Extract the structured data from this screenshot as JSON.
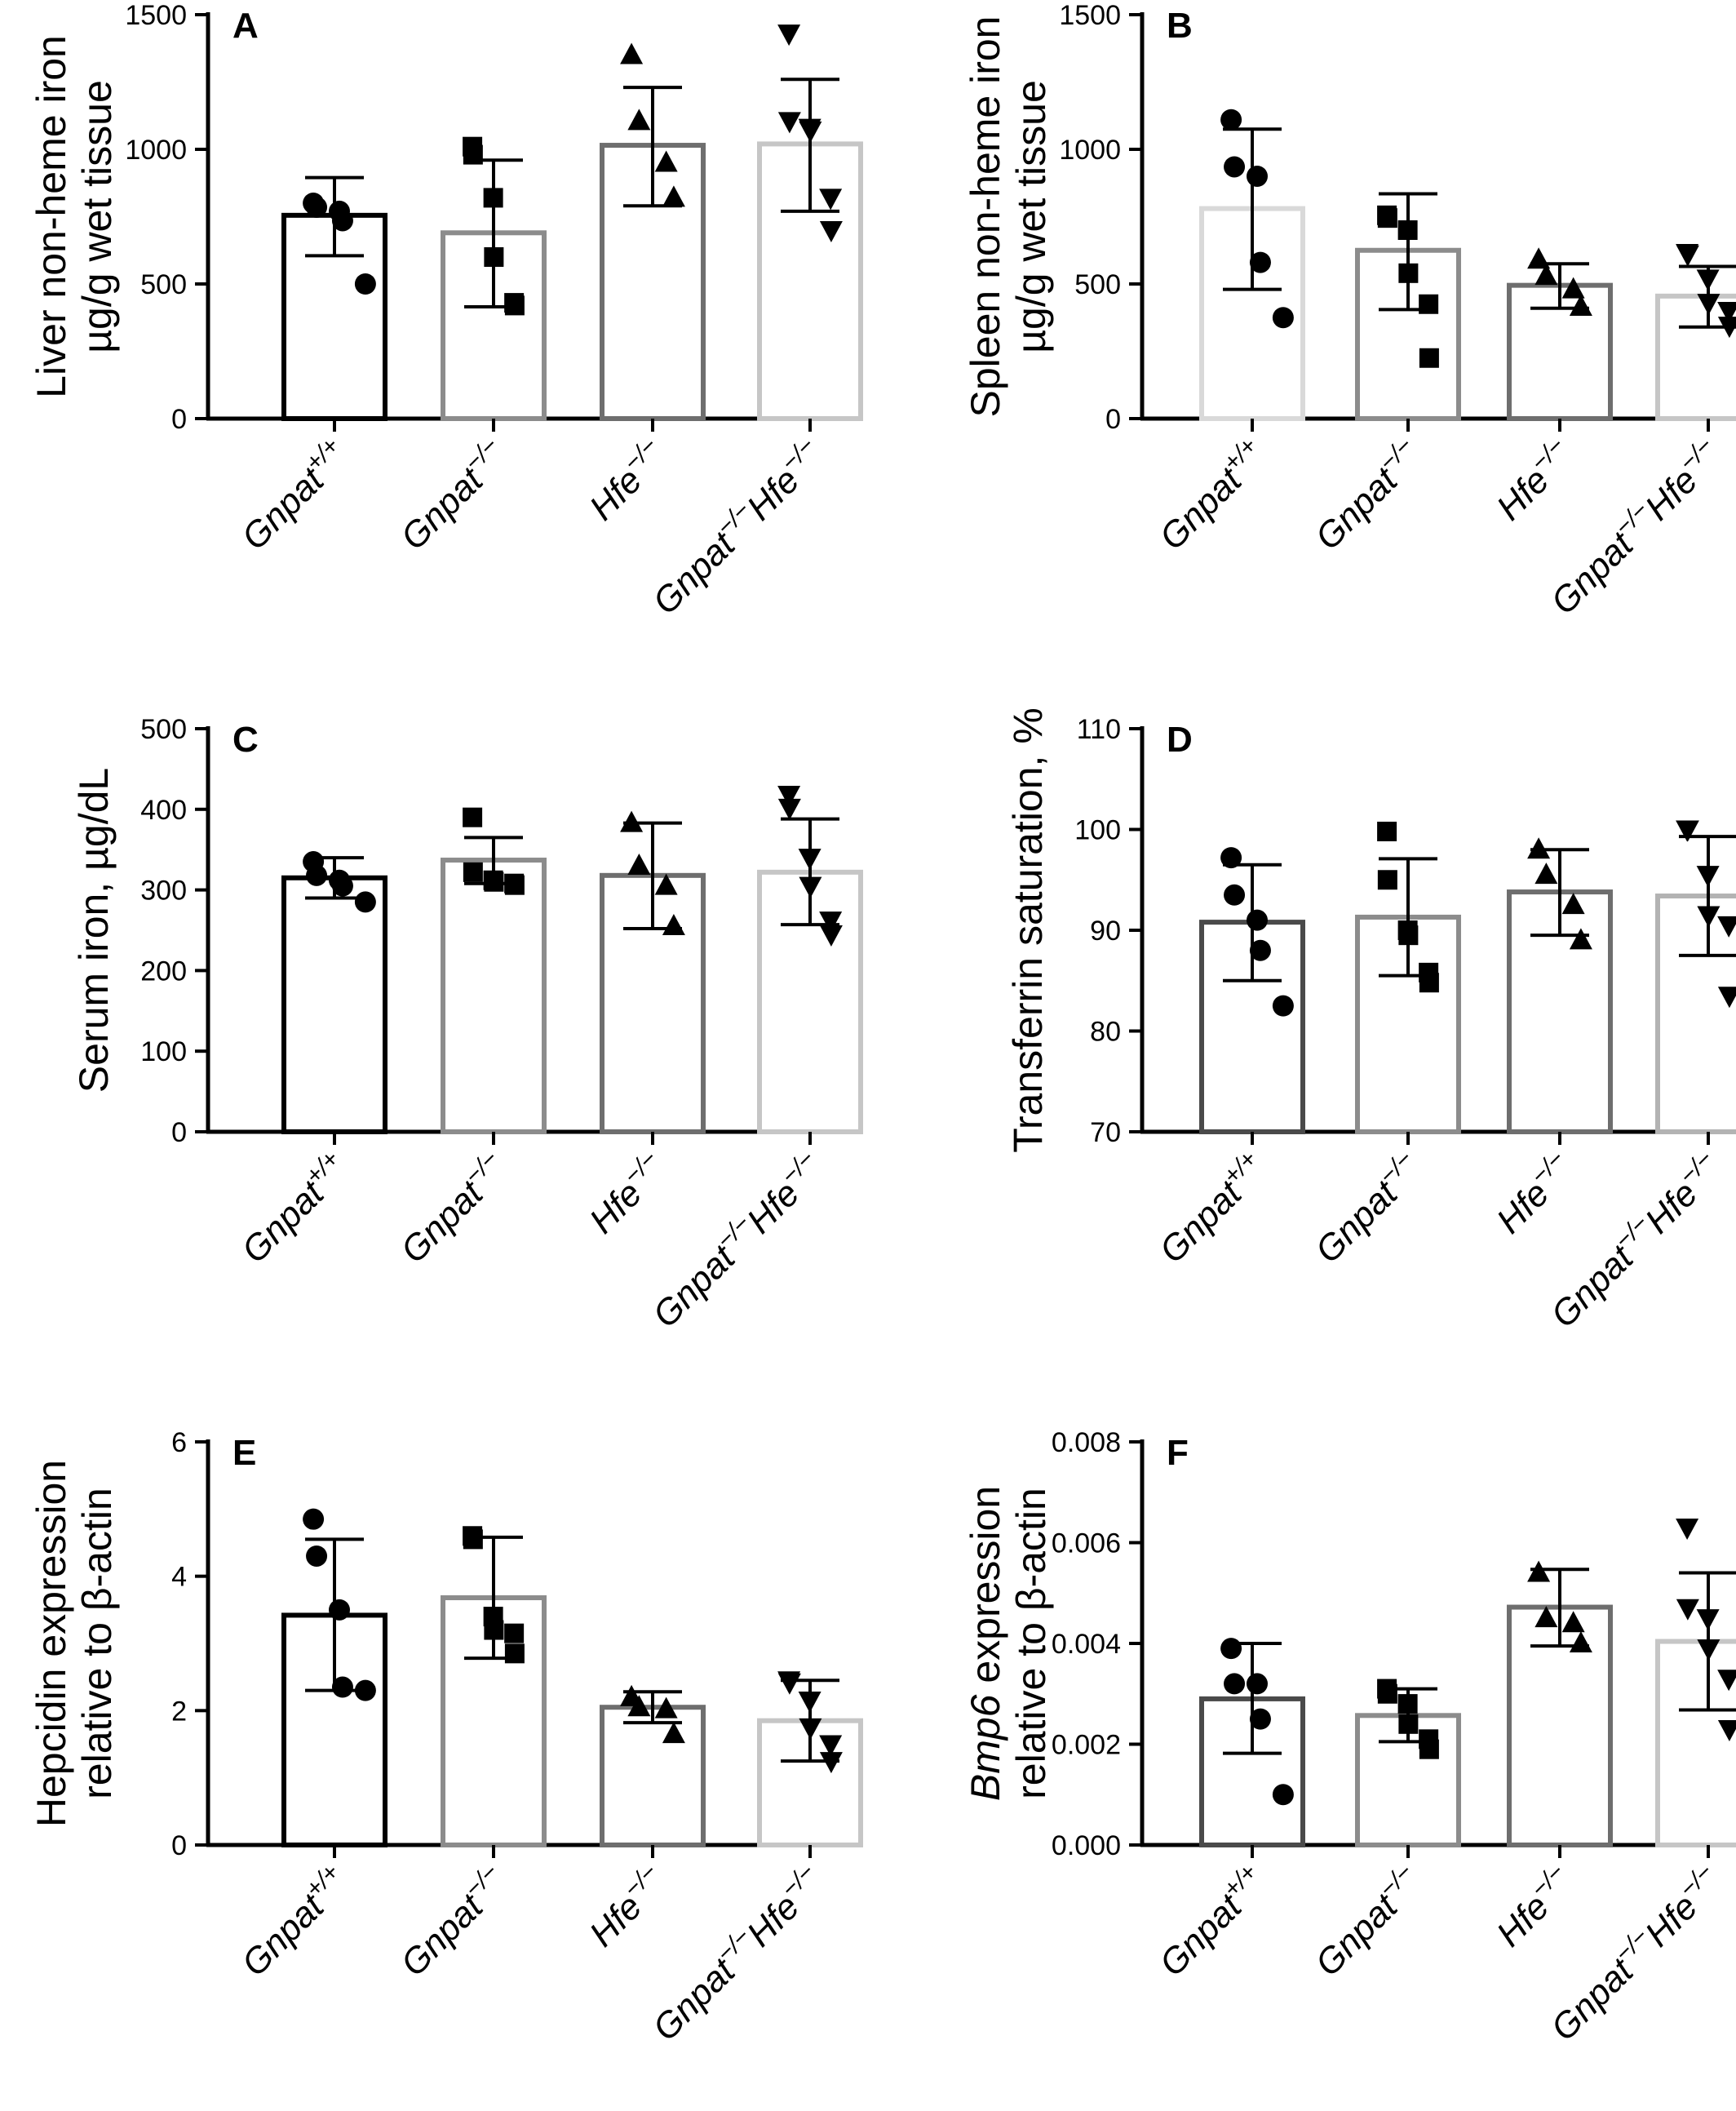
{
  "colors": {
    "Gnpat+/+ (A, C, E)": "#000000",
    "Gnpat+/+ (B)": "#d9d9d9",
    "Gnpat+/+ (D, F)": "#4a4a4a",
    "Gnpat-/-": "#8c8c8c",
    "Hfe-/-": "#6e6e6e",
    "Gnpat-/-Hfe-/- (A, B, C, E, F)": "#c6c6c6",
    "Gnpat-/-Hfe-/- (D)": "#b3b3b3"
  },
  "markers": [
    "circle",
    "square",
    "triangle-up",
    "triangle-down"
  ],
  "categories": [
    {
      "base": "Gnpat",
      "sup": "+/+",
      "base2": "",
      "sup2": ""
    },
    {
      "base": "Gnpat",
      "sup": "−/−",
      "base2": "",
      "sup2": ""
    },
    {
      "base": "Hfe",
      "sup": "−/−",
      "base2": "",
      "sup2": ""
    },
    {
      "base": "Gnpat",
      "sup": "−/−",
      "base2": "Hfe",
      "sup2": "−/−"
    }
  ],
  "chart_data": [
    {
      "panel": "A",
      "type": "bar",
      "error_bars": "sd",
      "ylabel_lines": [
        "Liver non-heme iron",
        "µg/g wet tissue"
      ],
      "ylim": [
        0,
        1500
      ],
      "yticks": [
        "0",
        "500",
        "1000",
        "1500"
      ],
      "categories": [
        "Gnpat+/+",
        "Gnpat−/−",
        "Hfe−/−",
        "Gnpat−/−Hfe−/−"
      ],
      "values": [
        755,
        690,
        1015,
        1020
      ],
      "err_low": [
        605,
        415,
        790,
        770
      ],
      "err_high": [
        895,
        960,
        1230,
        1260
      ],
      "points": [
        [
          800,
          785,
          770,
          735,
          500
        ],
        [
          1010,
          980,
          820,
          600,
          430,
          420
        ],
        [
          1350,
          1105,
          950,
          820
        ],
        [
          1430,
          1105,
          1080,
          1070,
          820,
          700
        ]
      ]
    },
    {
      "panel": "B",
      "type": "bar",
      "error_bars": "sd",
      "ylabel_lines": [
        "Spleen non-heme iron",
        "µg/g wet tissue"
      ],
      "ylim": [
        0,
        1500
      ],
      "yticks": [
        "0",
        "500",
        "1000",
        "1500"
      ],
      "categories": [
        "Gnpat+/+",
        "Gnpat−/−",
        "Hfe−/−",
        "Gnpat−/−Hfe−/−"
      ],
      "values": [
        780,
        625,
        495,
        455
      ],
      "err_low": [
        480,
        405,
        410,
        340
      ],
      "err_high": [
        1075,
        835,
        575,
        565
      ],
      "points": [
        [
          1110,
          935,
          900,
          580,
          375
        ],
        [
          755,
          745,
          700,
          540,
          425,
          225
        ],
        [
          590,
          530,
          480,
          415
        ],
        [
          615,
          610,
          520,
          430,
          400,
          345
        ]
      ]
    },
    {
      "panel": "C",
      "type": "bar",
      "error_bars": "sd",
      "ylabel_lines": [
        "Serum iron, µg/dL"
      ],
      "ylim": [
        0,
        500
      ],
      "yticks": [
        "0",
        "100",
        "200",
        "300",
        "400",
        "500"
      ],
      "categories": [
        "Gnpat+/+",
        "Gnpat−/−",
        "Hfe−/−",
        "Gnpat−/−Hfe−/−"
      ],
      "values": [
        315,
        337,
        318,
        322
      ],
      "err_low": [
        290,
        308,
        252,
        257
      ],
      "err_high": [
        340,
        365,
        383,
        388
      ],
      "points": [
        [
          335,
          318,
          312,
          305,
          285
        ],
        [
          390,
          322,
          312,
          310,
          308,
          306
        ],
        [
          383,
          330,
          305,
          255
        ],
        [
          418,
          402,
          340,
          305,
          262,
          245
        ]
      ]
    },
    {
      "panel": "D",
      "type": "bar",
      "error_bars": "sd",
      "ylabel_lines": [
        "Transferrin saturation, %"
      ],
      "ylim": [
        70,
        110
      ],
      "yticks": [
        "70",
        "80",
        "90",
        "100",
        "110"
      ],
      "categories": [
        "Gnpat+/+",
        "Gnpat−/−",
        "Hfe−/−",
        "Gnpat−/−Hfe−/−"
      ],
      "values": [
        90.8,
        91.3,
        93.8,
        93.4
      ],
      "err_low": [
        85.0,
        85.5,
        89.5,
        87.5
      ],
      "err_high": [
        96.5,
        97.1,
        98.0,
        99.3
      ],
      "points": [
        [
          97.2,
          93.5,
          91.0,
          88.0,
          82.5
        ],
        [
          99.8,
          95.0,
          90.0,
          89.5,
          85.8,
          84.8
        ],
        [
          98.0,
          95.5,
          92.5,
          89.0
        ],
        [
          100.0,
          100.0,
          95.5,
          91.5,
          90.5,
          83.5
        ]
      ]
    },
    {
      "panel": "E",
      "type": "bar",
      "error_bars": "sd",
      "ylabel_lines": [
        "Hepcidin expression",
        "relative to β-actin"
      ],
      "ylim": [
        0,
        6
      ],
      "yticks": [
        "0",
        "2",
        "4",
        "6"
      ],
      "categories": [
        "Gnpat+/+",
        "Gnpat−/−",
        "Hfe−/−",
        "Gnpat−/−Hfe−/−"
      ],
      "values": [
        3.42,
        3.68,
        2.05,
        1.85
      ],
      "err_low": [
        2.3,
        2.78,
        1.82,
        1.25
      ],
      "err_high": [
        4.55,
        4.58,
        2.28,
        2.45
      ],
      "points": [
        [
          4.85,
          4.3,
          3.5,
          2.35,
          2.3
        ],
        [
          4.6,
          4.55,
          3.4,
          3.2,
          3.15,
          2.85
        ],
        [
          2.2,
          2.05,
          2.02,
          1.65
        ],
        [
          2.45,
          2.42,
          2.15,
          1.75,
          1.5,
          1.25
        ]
      ]
    },
    {
      "panel": "F",
      "type": "bar",
      "error_bars": "sd",
      "ylabel_parts": [
        {
          "text": "Bmp6",
          "italic": true
        },
        {
          "text": " expression",
          "italic": false
        }
      ],
      "ylabel_line2": "relative to β-actin",
      "ylim": [
        0,
        0.008
      ],
      "yticks": [
        "0.000",
        "0.002",
        "0.004",
        "0.006",
        "0.008"
      ],
      "categories": [
        "Gnpat+/+",
        "Gnpat−/−",
        "Hfe−/−",
        "Gnpat−/−Hfe−/−"
      ],
      "values": [
        0.0029,
        0.00257,
        0.00472,
        0.00404
      ],
      "err_low": [
        0.00182,
        0.00205,
        0.00395,
        0.00268
      ],
      "err_high": [
        0.004,
        0.0031,
        0.00547,
        0.0054
      ],
      "points": [
        [
          0.0039,
          0.0032,
          0.0032,
          0.0025,
          0.001
        ],
        [
          0.0031,
          0.003,
          0.0028,
          0.0024,
          0.0021,
          0.0019
        ],
        [
          0.0054,
          0.0045,
          0.0044,
          0.004
        ],
        [
          0.0063,
          0.0047,
          0.0045,
          0.0039,
          0.0033,
          0.0023
        ]
      ]
    }
  ]
}
